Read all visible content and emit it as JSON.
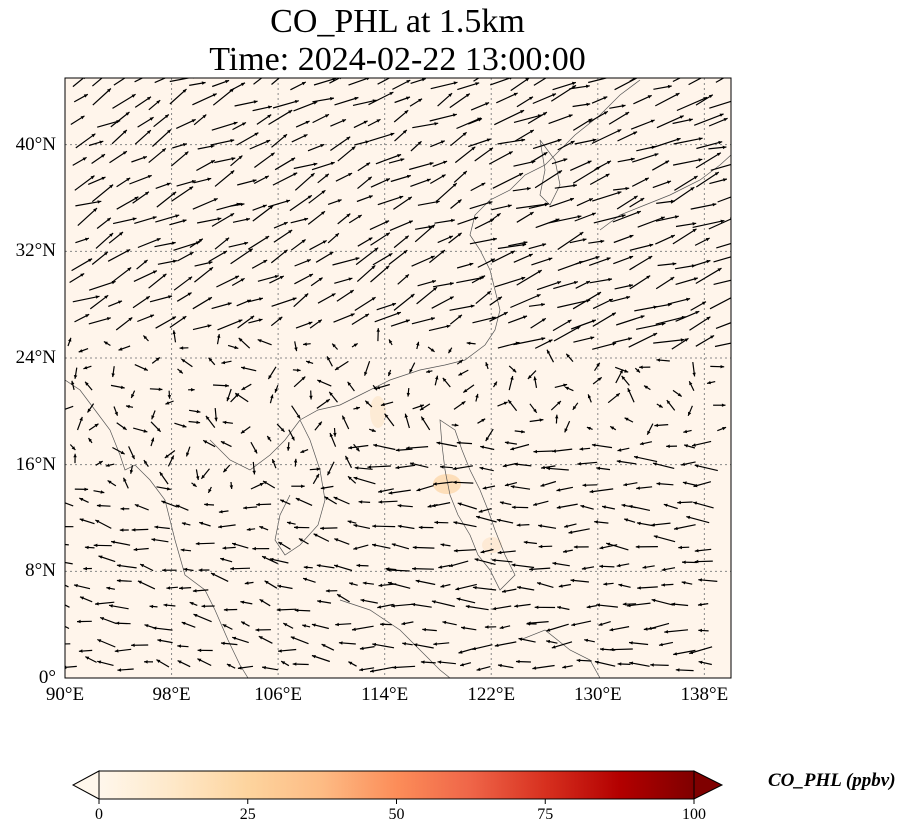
{
  "title_line1": "CO_PHL at 1.5km",
  "title_line2": "Time: 2024-02-22 13:00:00",
  "map": {
    "lon_range": [
      90,
      140
    ],
    "lat_range": [
      0,
      45
    ],
    "lon_ticks": [
      {
        "value": 90,
        "label": "90°E"
      },
      {
        "value": 98,
        "label": "98°E"
      },
      {
        "value": 106,
        "label": "106°E"
      },
      {
        "value": 114,
        "label": "114°E"
      },
      {
        "value": 122,
        "label": "122°E"
      },
      {
        "value": 130,
        "label": "130°E"
      },
      {
        "value": 138,
        "label": "138°E"
      }
    ],
    "lat_ticks": [
      {
        "value": 0,
        "label": "0°"
      },
      {
        "value": 8,
        "label": "8°N"
      },
      {
        "value": 16,
        "label": "16°N"
      },
      {
        "value": 24,
        "label": "24°N"
      },
      {
        "value": 32,
        "label": "32°N"
      },
      {
        "value": 40,
        "label": "40°N"
      }
    ],
    "gridlines": true,
    "background_color": "#fff5eb",
    "vector_color": "#000000"
  },
  "colorbar": {
    "label": "CO_PHL (ppbv)",
    "colormap": "OrRd",
    "min": 0,
    "max": 100,
    "extend": "both",
    "ticks": [
      0,
      25,
      50,
      75,
      100
    ],
    "stops": [
      "#fff7ec",
      "#fee8c8",
      "#fdd49e",
      "#fdbb84",
      "#fc8d59",
      "#ef6548",
      "#d7301f",
      "#b30000",
      "#7f0000"
    ]
  }
}
